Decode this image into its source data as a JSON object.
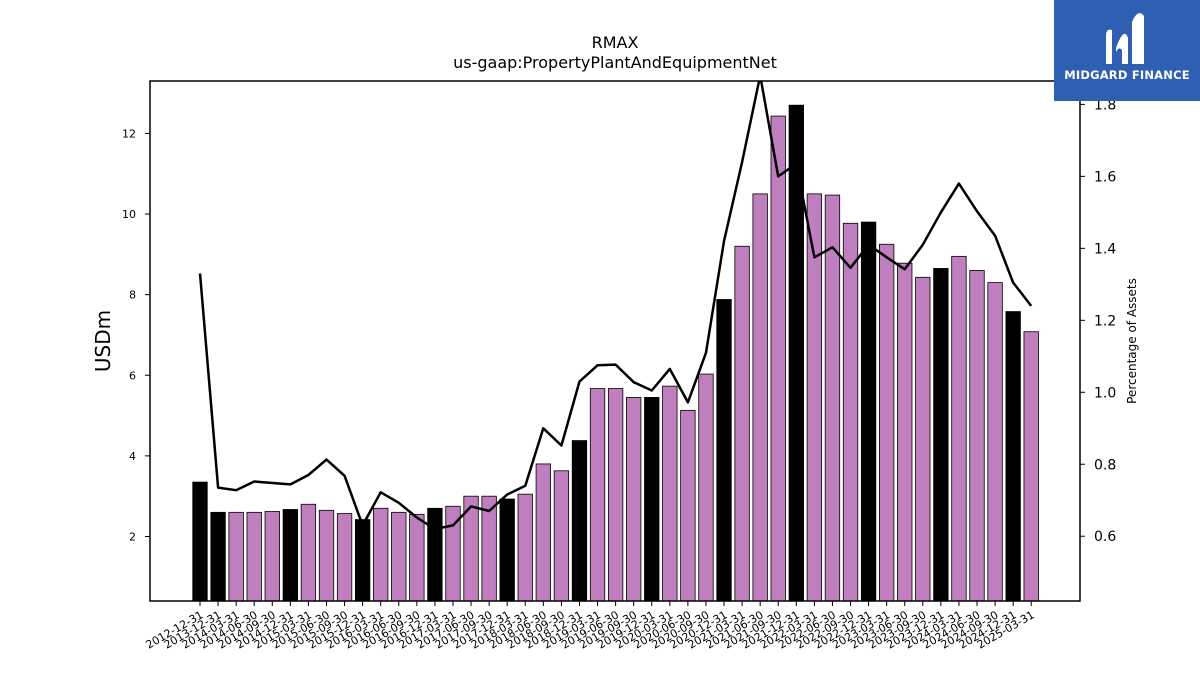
{
  "chart_data": {
    "type": "bar",
    "title": "RMAX",
    "subtitle": "us-gaap:PropertyPlantAndEquipmentNet",
    "ylabel": "USDm",
    "ylabel_right": "Percentage of Assets",
    "ylim": [
      0.4,
      13.3
    ],
    "ylim_right": [
      0.42,
      1.865
    ],
    "yticks": [
      2,
      4,
      6,
      8,
      10,
      12
    ],
    "yticks_right": [
      0.6,
      0.8,
      1.0,
      1.2,
      1.4,
      1.6,
      1.8
    ],
    "categories": [
      "2012-12-31",
      "2013-12-31",
      "2014-03-31",
      "2014-06-30",
      "2014-09-30",
      "2014-12-31",
      "2015-03-31",
      "2015-06-30",
      "2015-09-30",
      "2015-12-31",
      "2016-03-31",
      "2016-06-30",
      "2016-09-30",
      "2016-12-31",
      "2017-03-31",
      "2017-06-30",
      "2017-09-30",
      "2017-12-31",
      "2018-03-31",
      "2018-06-30",
      "2018-09-30",
      "2018-12-31",
      "2019-03-31",
      "2019-06-30",
      "2019-09-30",
      "2019-12-31",
      "2020-03-31",
      "2020-06-30",
      "2020-09-30",
      "2020-12-31",
      "2021-03-31",
      "2021-06-30",
      "2021-09-30",
      "2021-12-31",
      "2022-03-31",
      "2022-06-30",
      "2022-09-30",
      "2022-12-31",
      "2023-03-31",
      "2023-06-30",
      "2023-09-30",
      "2023-12-31",
      "2024-03-31",
      "2024-06-30",
      "2024-09-30",
      "2024-12-31",
      "2025-03-31"
    ],
    "series": [
      {
        "type": "bar",
        "values": [
          3.35,
          2.6,
          2.6,
          2.6,
          2.62,
          2.67,
          2.8,
          2.65,
          2.57,
          2.42,
          2.7,
          2.6,
          2.55,
          2.7,
          2.75,
          3.0,
          3.0,
          2.93,
          3.05,
          3.8,
          3.63,
          4.38,
          5.67,
          5.67,
          5.45,
          5.45,
          5.73,
          5.13,
          6.03,
          7.88,
          9.2,
          10.5,
          12.43,
          12.7,
          10.5,
          10.47,
          9.77,
          9.8,
          9.25,
          8.78,
          8.43,
          8.65,
          8.95,
          8.6,
          8.3,
          7.58,
          7.08
        ],
        "highlight": [
          true,
          true,
          false,
          false,
          false,
          true,
          false,
          false,
          false,
          true,
          false,
          false,
          false,
          true,
          false,
          false,
          false,
          true,
          false,
          false,
          false,
          true,
          false,
          false,
          false,
          true,
          false,
          false,
          false,
          true,
          false,
          false,
          false,
          true,
          false,
          false,
          false,
          true,
          false,
          false,
          false,
          true,
          false,
          false,
          false,
          true,
          false
        ],
        "color_highlight": "#000000",
        "color_normal": "#bf7fbf"
      },
      {
        "type": "line",
        "axis": "right",
        "color": "#000000",
        "values": [
          1.33,
          0.735,
          0.728,
          0.752,
          0.748,
          0.744,
          0.77,
          0.813,
          0.768,
          0.63,
          0.722,
          0.693,
          0.652,
          0.62,
          0.63,
          0.683,
          0.67,
          0.716,
          0.74,
          0.9,
          0.852,
          1.03,
          1.075,
          1.077,
          1.028,
          1.005,
          1.065,
          0.972,
          1.11,
          1.42,
          1.64,
          1.88,
          1.6,
          1.635,
          1.375,
          1.403,
          1.346,
          1.41,
          1.375,
          1.342,
          1.41,
          1.5,
          1.58,
          1.503,
          1.435,
          1.305,
          1.24
        ]
      }
    ],
    "grid": false
  },
  "logo": {
    "text": "MIDGARD FINANCE",
    "color": "#2f5fb3"
  }
}
